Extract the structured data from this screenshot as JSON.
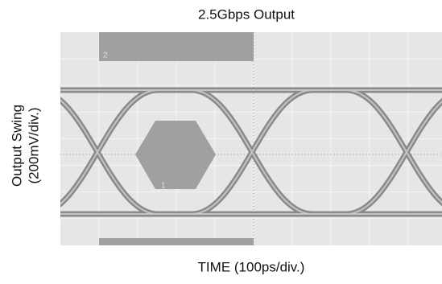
{
  "chart_data": {
    "type": "eye",
    "title": "2.5Gbps Output",
    "y_label": [
      "Output Swing",
      "(200mV/div.)"
    ],
    "x_label": "TIME (100ps/div.)",
    "mask_labels": [
      "2",
      "1"
    ]
  }
}
